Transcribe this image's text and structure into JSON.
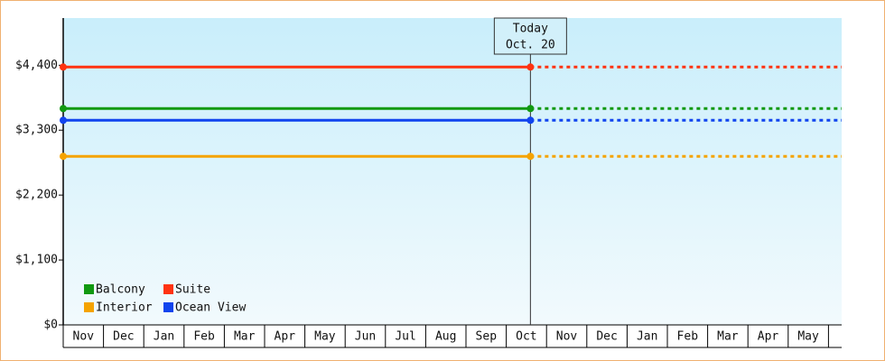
{
  "chart_data": {
    "type": "line",
    "categories": [
      "Nov",
      "Dec",
      "Jan",
      "Feb",
      "Mar",
      "Apr",
      "May",
      "Jun",
      "Jul",
      "Aug",
      "Sep",
      "Oct",
      "Nov",
      "Dec",
      "Jan",
      "Feb",
      "Mar",
      "Apr",
      "May"
    ],
    "series": [
      {
        "name": "Balcony",
        "color": "#119911",
        "value": 3667
      },
      {
        "name": "Suite",
        "color": "#ff3311",
        "value": 4370
      },
      {
        "name": "Interior",
        "color": "#f5a300",
        "value": 2857
      },
      {
        "name": "Ocean View",
        "color": "#1144ee",
        "value": 3468
      }
    ],
    "annotation": {
      "lines": [
        "Today",
        "Oct. 20"
      ],
      "category": "Oct"
    },
    "ylim": [
      0,
      5200
    ],
    "yticks": [
      {
        "value": 0,
        "label": "$0"
      },
      {
        "value": 1100,
        "label": "$1,100"
      },
      {
        "value": 2200,
        "label": "$2,200"
      },
      {
        "value": 3300,
        "label": "$3,300"
      },
      {
        "value": 4400,
        "label": "$4,400"
      }
    ],
    "legend": "bottom-left"
  }
}
